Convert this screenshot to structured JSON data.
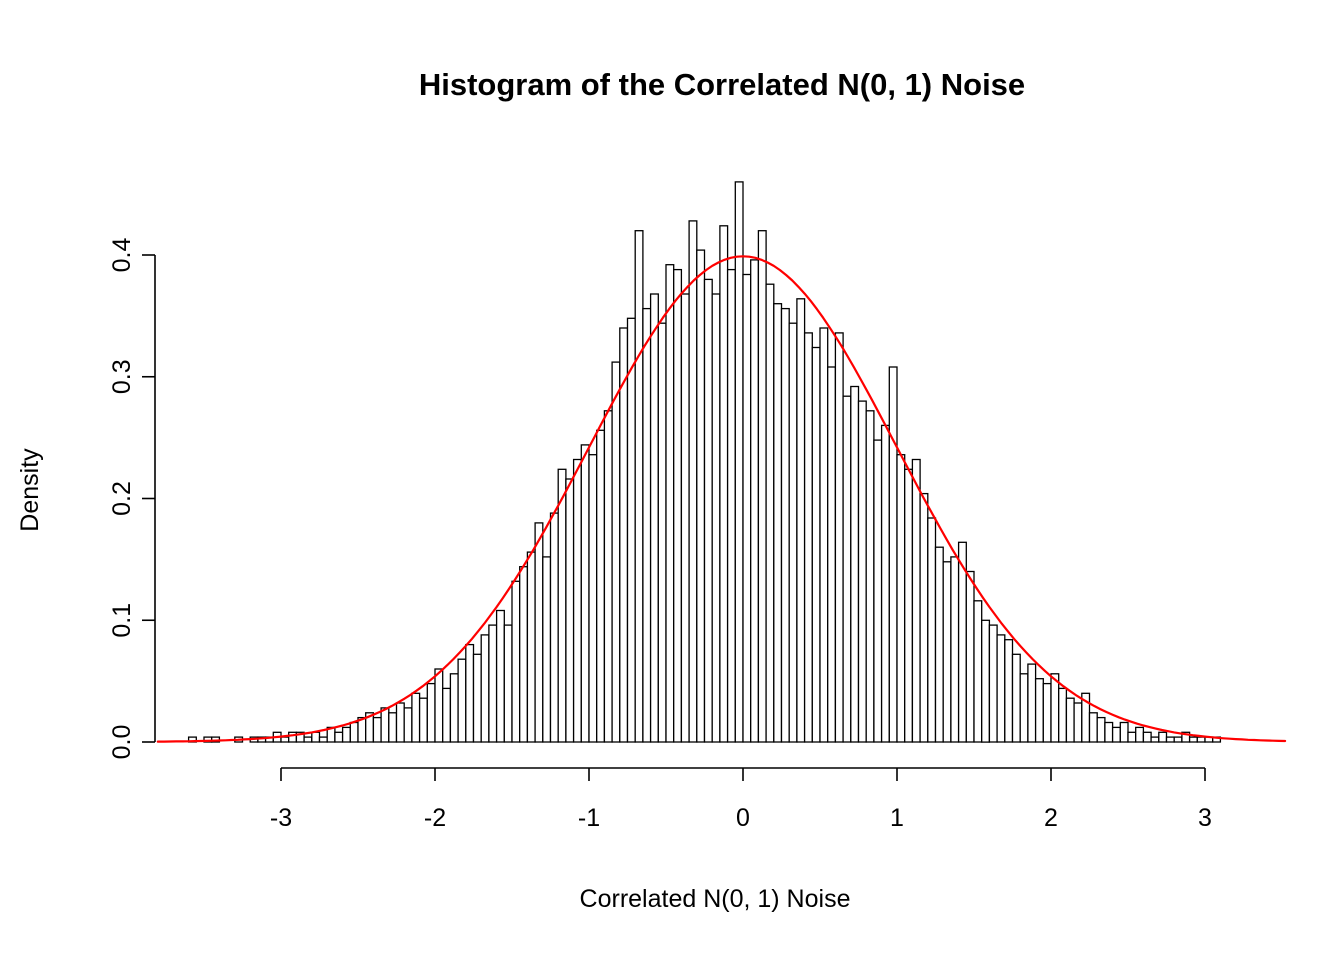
{
  "chart_data": {
    "type": "bar",
    "subtype": "histogram",
    "title": "Histogram of the Correlated N(0, 1) Noise",
    "xlabel": "Correlated N(0, 1) Noise",
    "ylabel": "Density",
    "x_ticks": [
      -3,
      -2,
      -1,
      0,
      1,
      2,
      3
    ],
    "x_tick_labels": [
      "-3",
      "-2",
      "-1",
      "0",
      "1",
      "2",
      "3"
    ],
    "y_ticks": [
      0,
      0.1,
      0.2,
      0.3,
      0.4
    ],
    "y_tick_labels": [
      "0.0",
      "0.1",
      "0.2",
      "0.3",
      "0.4"
    ],
    "xlim": [
      -3.8,
      3.55
    ],
    "ylim": [
      0,
      0.46
    ],
    "grid": false,
    "legend": null,
    "bar_fill": "#FFFFFF",
    "bar_stroke": "#000000",
    "axis_color": "#000000",
    "bins": {
      "start": -3.6,
      "width": 0.05,
      "densities": [
        0.004,
        0,
        0.004,
        0.004,
        0,
        0,
        0.004,
        0,
        0.004,
        0.004,
        0.004,
        0.008,
        0.004,
        0.008,
        0.008,
        0.004,
        0.008,
        0.004,
        0.012,
        0.008,
        0.012,
        0.016,
        0.02,
        0.024,
        0.02,
        0.028,
        0.024,
        0.032,
        0.028,
        0.04,
        0.036,
        0.048,
        0.06,
        0.044,
        0.056,
        0.068,
        0.08,
        0.072,
        0.088,
        0.096,
        0.108,
        0.096,
        0.132,
        0.144,
        0.156,
        0.18,
        0.152,
        0.188,
        0.224,
        0.216,
        0.232,
        0.244,
        0.236,
        0.256,
        0.272,
        0.312,
        0.34,
        0.348,
        0.42,
        0.356,
        0.368,
        0.344,
        0.392,
        0.388,
        0.368,
        0.428,
        0.404,
        0.38,
        0.368,
        0.424,
        0.388,
        0.46,
        0.384,
        0.396,
        0.42,
        0.376,
        0.36,
        0.356,
        0.344,
        0.364,
        0.336,
        0.324,
        0.34,
        0.308,
        0.336,
        0.284,
        0.292,
        0.28,
        0.272,
        0.248,
        0.26,
        0.308,
        0.236,
        0.224,
        0.232,
        0.204,
        0.184,
        0.16,
        0.148,
        0.152,
        0.164,
        0.14,
        0.116,
        0.1,
        0.096,
        0.088,
        0.084,
        0.072,
        0.056,
        0.064,
        0.052,
        0.048,
        0.056,
        0.044,
        0.036,
        0.032,
        0.04,
        0.024,
        0.02,
        0.016,
        0.012,
        0.016,
        0.008,
        0.012,
        0.008,
        0.004,
        0.008,
        0.004,
        0.004,
        0.008,
        0.004,
        0.004,
        0.004,
        0.004
      ]
    },
    "curve": {
      "name": "N(0, 1) density",
      "distribution": "normal",
      "mean": 0,
      "sd": 1,
      "color": "#FF0000"
    }
  }
}
